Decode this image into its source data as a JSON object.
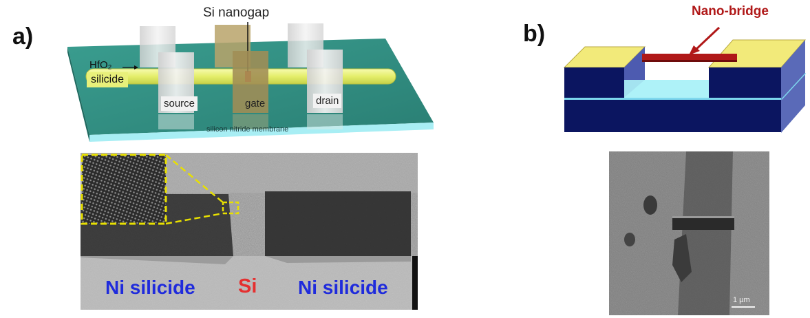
{
  "panel_a": {
    "label": "a)",
    "schematic": {
      "title_label": "Si nanogap",
      "oxide_label": "HfO₂",
      "silicide_label": "silicide",
      "source_label": "source",
      "gate_label": "gate",
      "drain_label": "drain",
      "membrane_label": "silicon nitride membrane"
    },
    "tem": {
      "left_region_label": "Ni silicide",
      "center_region_label": "Si",
      "right_region_label": "Ni silicide"
    }
  },
  "panel_b": {
    "label": "b)",
    "schematic": {
      "bridge_label": "Nano-bridge"
    },
    "sem": {
      "scale_bar_label": "1 µm"
    }
  },
  "colors": {
    "membrane_teal": "#2e8b80",
    "silicide_yellow": "#e8f07a",
    "gate_tan": "#9c8a55",
    "nano_bridge_red": "#b01818",
    "substrate_navy": "#0b1560",
    "pad_yellow": "#f2ea7a",
    "cavity_cyan": "#aef2f7",
    "tem_label_blue": "#1f2bdc",
    "tem_label_red": "#e53030",
    "inset_outline_yellow": "#e8e000"
  }
}
